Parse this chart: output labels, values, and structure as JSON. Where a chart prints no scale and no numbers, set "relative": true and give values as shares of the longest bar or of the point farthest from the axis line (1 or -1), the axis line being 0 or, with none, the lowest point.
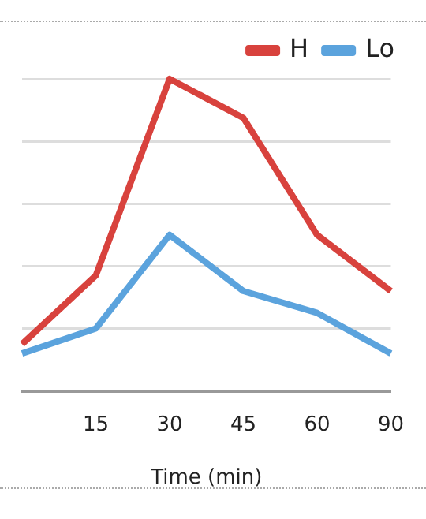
{
  "chart_data": {
    "type": "line",
    "relative": true,
    "xlabel": "Time (min)",
    "categories": [
      null,
      "15",
      "30",
      "45",
      "60",
      "90"
    ],
    "series": [
      {
        "name": "H",
        "color": "#d8423d",
        "values": [
          0.15,
          0.37,
          1,
          0.875,
          0.5,
          0.32
        ]
      },
      {
        "name": "Lo",
        "color": "#5ba3dd",
        "values": [
          0.12,
          0.2,
          0.5,
          0.32,
          0.25,
          0.12
        ]
      }
    ],
    "grid": "y",
    "legend": "top right",
    "marker": "none",
    "line_style": "solid"
  }
}
